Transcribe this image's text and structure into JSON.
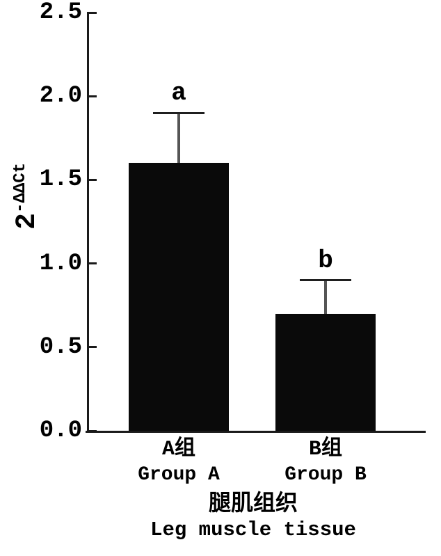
{
  "page": {
    "background": "#ffffff",
    "text_color": "#000000"
  },
  "chart_data": {
    "type": "bar",
    "ylabel_base": "2",
    "ylabel_sup": "-ΔΔCt",
    "ylabel_text": "2^-ΔΔCt",
    "ylim": [
      0,
      2.5
    ],
    "ytick_labels": [
      "0.0",
      "0.5",
      "1.0",
      "1.5",
      "2.0",
      "2.5"
    ],
    "categories": [
      {
        "label_zh": "A组",
        "label_en": "Group A"
      },
      {
        "label_zh": "B组",
        "label_en": "Group B"
      }
    ],
    "series": [
      {
        "name": "2^-ΔΔCt",
        "values": [
          1.6,
          0.7
        ],
        "errors_upper": [
          0.3,
          0.2
        ]
      }
    ],
    "sig_labels": [
      "a",
      "b"
    ],
    "xlabel_zh": "腿肌组织",
    "xlabel_en": "Leg muscle tissue",
    "grid": false,
    "legend": "none",
    "bar_color": "#0a0a0a",
    "axis_color": "#1a1a1a",
    "error_stem_color": "#555555",
    "error_cap_color": "#1f1f1f"
  }
}
